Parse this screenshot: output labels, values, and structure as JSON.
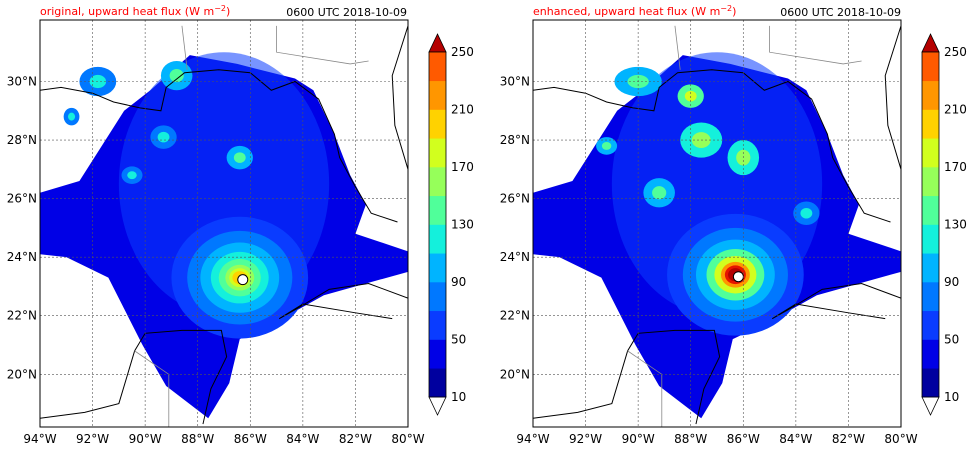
{
  "figure": {
    "panels": [
      {
        "title": "original, upward heat flux (W m$^{-2}$)",
        "title_text": "original, upward heat flux (W m",
        "title_exp": "−2",
        "title_tail": ")",
        "timestamp": "0600 UTC 2018-10-09"
      },
      {
        "title": "enhanced, upward heat flux (W m$^{-2}$)",
        "title_text": "enhanced, upward heat flux (W m",
        "title_exp": "−2",
        "title_tail": ")",
        "timestamp": "0600 UTC 2018-10-09"
      }
    ]
  },
  "chart_data": [
    {
      "type": "heatmap",
      "title": "original, upward heat flux (W m^-2)",
      "timestamp": "0600 UTC 2018-10-09",
      "x_ticks": [
        "94°W",
        "92°W",
        "90°W",
        "88°W",
        "86°W",
        "84°W",
        "82°W",
        "80°W"
      ],
      "y_ticks": [
        "20°N",
        "22°N",
        "24°N",
        "26°N",
        "28°N",
        "30°N"
      ],
      "xlim": [
        -94,
        -80
      ],
      "ylim": [
        18.2,
        32.1
      ],
      "grid": true,
      "colorbar": {
        "levels": [
          10,
          30,
          50,
          70,
          90,
          110,
          130,
          150,
          170,
          190,
          210,
          230,
          250
        ],
        "tick_labels": [
          "10",
          "50",
          "90",
          "130",
          "170",
          "210",
          "250"
        ],
        "extend": "both"
      },
      "features": {
        "hurricane_center": {
          "lon": -86.4,
          "lat": 23.3,
          "peak_flux": 170
        },
        "max_flux_region": "eyewall west of center"
      }
    },
    {
      "type": "heatmap",
      "title": "enhanced, upward heat flux (W m^-2)",
      "timestamp": "0600 UTC 2018-10-09",
      "x_ticks": [
        "94°W",
        "92°W",
        "90°W",
        "88°W",
        "86°W",
        "84°W",
        "82°W",
        "80°W"
      ],
      "y_ticks": [
        "20°N",
        "22°N",
        "24°N",
        "26°N",
        "28°N",
        "30°N"
      ],
      "xlim": [
        -94,
        -80
      ],
      "ylim": [
        18.2,
        32.1
      ],
      "grid": true,
      "colorbar": {
        "levels": [
          10,
          30,
          50,
          70,
          90,
          110,
          130,
          150,
          170,
          190,
          210,
          230,
          250
        ],
        "tick_labels": [
          "10",
          "50",
          "90",
          "130",
          "170",
          "210",
          "250"
        ],
        "extend": "both"
      },
      "features": {
        "hurricane_center": {
          "lon": -86.3,
          "lat": 23.4,
          "peak_flux": 250
        },
        "max_flux_region": "eyewall surrounding center"
      }
    }
  ],
  "colormap": [
    "#00009f",
    "#0000e6",
    "#0a3cff",
    "#0078ff",
    "#00b4ff",
    "#14f0dc",
    "#50ff9a",
    "#96ff5a",
    "#d2ff1e",
    "#ffd200",
    "#ff9600",
    "#ff5a00",
    "#e61400",
    "#b40000"
  ]
}
